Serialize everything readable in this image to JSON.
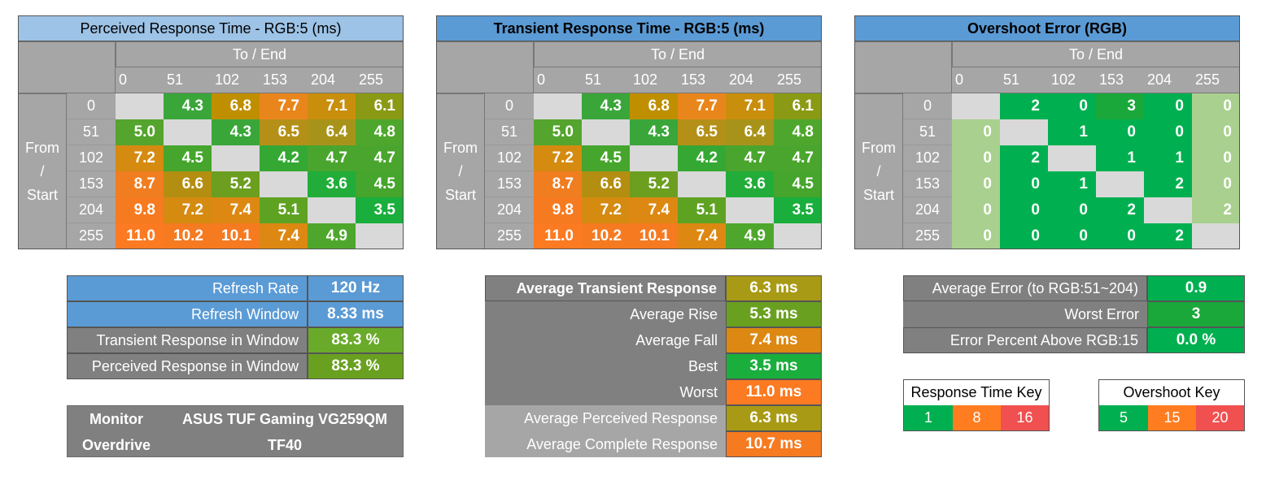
{
  "levels": [
    "0",
    "51",
    "102",
    "153",
    "204",
    "255"
  ],
  "colors": {
    "green": "#00b050",
    "orange": "#ff7d20",
    "red": "#f05050",
    "row_header_gray": "#a6a6a6",
    "col_header_gray": "#a6a6a6",
    "panel_gray": "#808080",
    "panel_light_gray": "#a6a6a6",
    "blue": "#5b9bd5",
    "light_blue": "#9dc3e6",
    "diag": "#d9d9d9",
    "overshoot_light": "#a9d08e"
  },
  "tables": [
    {
      "title": "Perceived Response Time - RGB:5 (ms)",
      "to_end": "To / End",
      "from_start": [
        "From",
        "/",
        "Start"
      ],
      "rows": [
        [
          "",
          "4.3",
          "6.8",
          "7.7",
          "7.1",
          "6.1"
        ],
        [
          "5.0",
          "",
          "4.3",
          "6.5",
          "6.4",
          "4.8"
        ],
        [
          "7.2",
          "4.5",
          "",
          "4.2",
          "4.7",
          "4.7"
        ],
        [
          "8.7",
          "6.6",
          "5.2",
          "",
          "3.6",
          "4.5"
        ],
        [
          "9.8",
          "7.2",
          "7.4",
          "5.1",
          "",
          "3.5"
        ],
        [
          "11.0",
          "10.2",
          "10.1",
          "7.4",
          "4.9",
          ""
        ]
      ],
      "cell_colors": [
        [
          "#d9d9d9",
          "#3aa63a",
          "#bf8f00",
          "#e8861c",
          "#c88e0c",
          "#8a9a14"
        ],
        [
          "#54a42e",
          "#d9d9d9",
          "#3aa63a",
          "#b49018",
          "#a8931a",
          "#4ea72c"
        ],
        [
          "#d58a10",
          "#45a52c",
          "#d9d9d9",
          "#35a834",
          "#4aa52e",
          "#4aa52e"
        ],
        [
          "#f07d20",
          "#b48e10",
          "#6c9e20",
          "#d9d9d9",
          "#22ad3a",
          "#45a52c"
        ],
        [
          "#f67a20",
          "#d58a10",
          "#dc8812",
          "#5ea222",
          "#d9d9d9",
          "#1aae3c"
        ],
        [
          "#fb7a22",
          "#f67a20",
          "#f67a20",
          "#dc8812",
          "#4ea72c",
          "#d9d9d9"
        ]
      ]
    },
    {
      "title": "Transient Response Time - RGB:5 (ms)",
      "to_end": "To / End",
      "from_start": [
        "From",
        "/",
        "Start"
      ],
      "rows": [
        [
          "",
          "4.3",
          "6.8",
          "7.7",
          "7.1",
          "6.1"
        ],
        [
          "5.0",
          "",
          "4.3",
          "6.5",
          "6.4",
          "4.8"
        ],
        [
          "7.2",
          "4.5",
          "",
          "4.2",
          "4.7",
          "4.7"
        ],
        [
          "8.7",
          "6.6",
          "5.2",
          "",
          "3.6",
          "4.5"
        ],
        [
          "9.8",
          "7.2",
          "7.4",
          "5.1",
          "",
          "3.5"
        ],
        [
          "11.0",
          "10.2",
          "10.1",
          "7.4",
          "4.9",
          ""
        ]
      ],
      "cell_colors": [
        [
          "#d9d9d9",
          "#3aa63a",
          "#bf8f00",
          "#e8861c",
          "#c88e0c",
          "#8a9a14"
        ],
        [
          "#54a42e",
          "#d9d9d9",
          "#3aa63a",
          "#b49018",
          "#a8931a",
          "#4ea72c"
        ],
        [
          "#d58a10",
          "#45a52c",
          "#d9d9d9",
          "#35a834",
          "#4aa52e",
          "#4aa52e"
        ],
        [
          "#f07d20",
          "#b48e10",
          "#6c9e20",
          "#d9d9d9",
          "#22ad3a",
          "#45a52c"
        ],
        [
          "#f67a20",
          "#d58a10",
          "#dc8812",
          "#5ea222",
          "#d9d9d9",
          "#1aae3c"
        ],
        [
          "#fb7a22",
          "#f67a20",
          "#f67a20",
          "#dc8812",
          "#4ea72c",
          "#d9d9d9"
        ]
      ]
    },
    {
      "title": "Overshoot Error (RGB)",
      "to_end": "To / End",
      "from_start": [
        "From",
        "/",
        "Start"
      ],
      "rows": [
        [
          "",
          "2",
          "0",
          "3",
          "0",
          "0"
        ],
        [
          "0",
          "",
          "1",
          "0",
          "0",
          "0"
        ],
        [
          "0",
          "2",
          "",
          "1",
          "1",
          "0"
        ],
        [
          "0",
          "0",
          "1",
          "",
          "2",
          "0"
        ],
        [
          "0",
          "0",
          "0",
          "2",
          "",
          "2"
        ],
        [
          "0",
          "0",
          "0",
          "0",
          "2",
          ""
        ]
      ],
      "cell_colors": [
        [
          "#d9d9d9",
          "#00b050",
          "#00b050",
          "#1aa83a",
          "#00b050",
          "#a9d08e"
        ],
        [
          "#a9d08e",
          "#d9d9d9",
          "#00b050",
          "#00b050",
          "#00b050",
          "#a9d08e"
        ],
        [
          "#a9d08e",
          "#00b050",
          "#d9d9d9",
          "#00b050",
          "#00b050",
          "#a9d08e"
        ],
        [
          "#a9d08e",
          "#00b050",
          "#00b050",
          "#d9d9d9",
          "#00b050",
          "#a9d08e"
        ],
        [
          "#a9d08e",
          "#00b050",
          "#00b050",
          "#00b050",
          "#d9d9d9",
          "#a9d08e"
        ],
        [
          "#a9d08e",
          "#00b050",
          "#00b050",
          "#00b050",
          "#00b050",
          "#d9d9d9"
        ]
      ]
    }
  ],
  "refresh_panel": {
    "rows": [
      {
        "label": "Refresh Rate",
        "value": "120 Hz"
      },
      {
        "label": "Refresh Window",
        "value": "8.33 ms"
      },
      {
        "label": "Transient Response in Window",
        "value": "83.3 %"
      },
      {
        "label": "Perceived Response in Window",
        "value": "83.3 %"
      }
    ]
  },
  "monitor_panel": {
    "monitor_label": "Monitor",
    "monitor_value": "ASUS TUF Gaming VG259QM",
    "overdrive_label": "Overdrive",
    "overdrive_value": "TF40"
  },
  "transient_panel": {
    "rows": [
      {
        "label": "Average Transient Response",
        "value": "6.3 ms"
      },
      {
        "label": "Average Rise",
        "value": "5.3 ms"
      },
      {
        "label": "Average Fall",
        "value": "7.4 ms"
      },
      {
        "label": "Best",
        "value": "3.5 ms"
      },
      {
        "label": "Worst",
        "value": "11.0 ms"
      },
      {
        "label": "Average Perceived Response",
        "value": "6.3 ms"
      },
      {
        "label": "Average Complete Response",
        "value": "10.7 ms"
      }
    ]
  },
  "error_panel": {
    "rows": [
      {
        "label": "Average Error (to RGB:51~204)",
        "value": "0.9"
      },
      {
        "label": "Worst Error",
        "value": "3"
      },
      {
        "label": "Error Percent Above RGB:15",
        "value": "0.0 %"
      }
    ]
  },
  "response_key": {
    "title": "Response Time Key",
    "values": [
      "1",
      "8",
      "16"
    ]
  },
  "overshoot_key": {
    "title": "Overshoot Key",
    "values": [
      "5",
      "15",
      "20"
    ]
  }
}
